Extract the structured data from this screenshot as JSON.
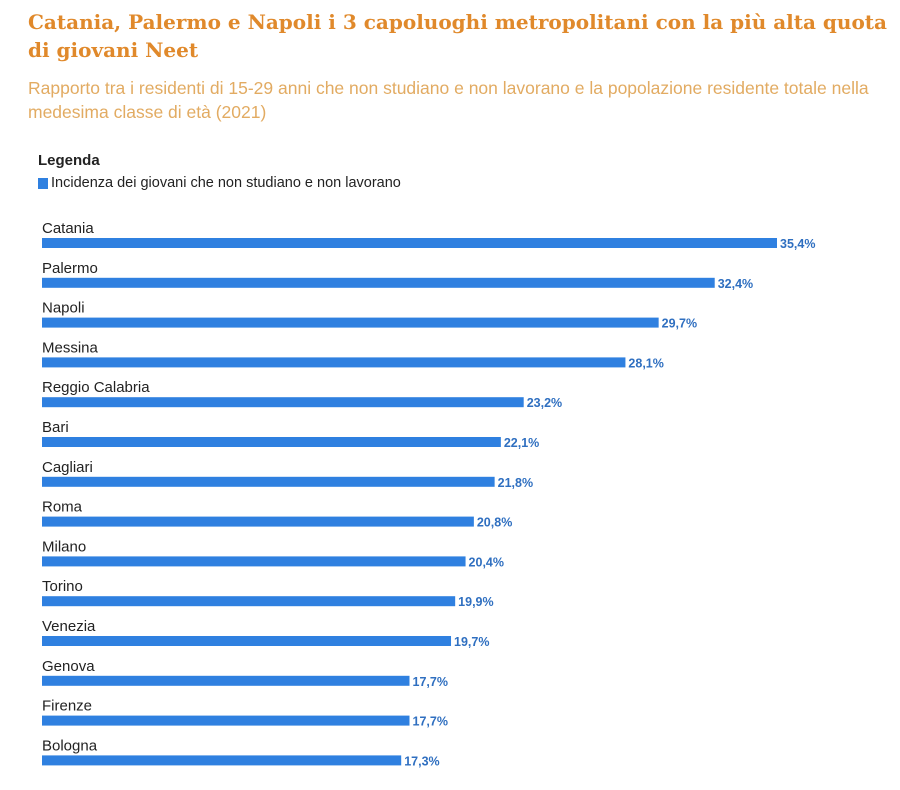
{
  "chart_data": {
    "type": "bar",
    "orientation": "horizontal",
    "title": "Catania, Palermo e Napoli i 3 capoluoghi metropolitani con la più alta quota di giovani Neet",
    "subtitle": "Rapporto tra i residenti di 15-29 anni che non studiano e non lavorano e la popolazione residente totale nella medesima classe di età (2021)",
    "legend_title": "Legenda",
    "legend": [
      "Incidenza dei giovani che non studiano e non lavorano"
    ],
    "categories": [
      "Catania",
      "Palermo",
      "Napoli",
      "Messina",
      "Reggio Calabria",
      "Bari",
      "Cagliari",
      "Roma",
      "Milano",
      "Torino",
      "Venezia",
      "Genova",
      "Firenze",
      "Bologna"
    ],
    "values": [
      35.4,
      32.4,
      29.7,
      28.1,
      23.2,
      22.1,
      21.8,
      20.8,
      20.4,
      19.9,
      19.7,
      17.7,
      17.7,
      17.3
    ],
    "value_labels": [
      "35,4%",
      "32,4%",
      "29,7%",
      "28,1%",
      "23,2%",
      "22,1%",
      "21,8%",
      "20,8%",
      "20,4%",
      "19,9%",
      "19,7%",
      "17,7%",
      "17,7%",
      "17,3%"
    ],
    "xlim": [
      0,
      35.4
    ],
    "color": "#2f80e0"
  }
}
